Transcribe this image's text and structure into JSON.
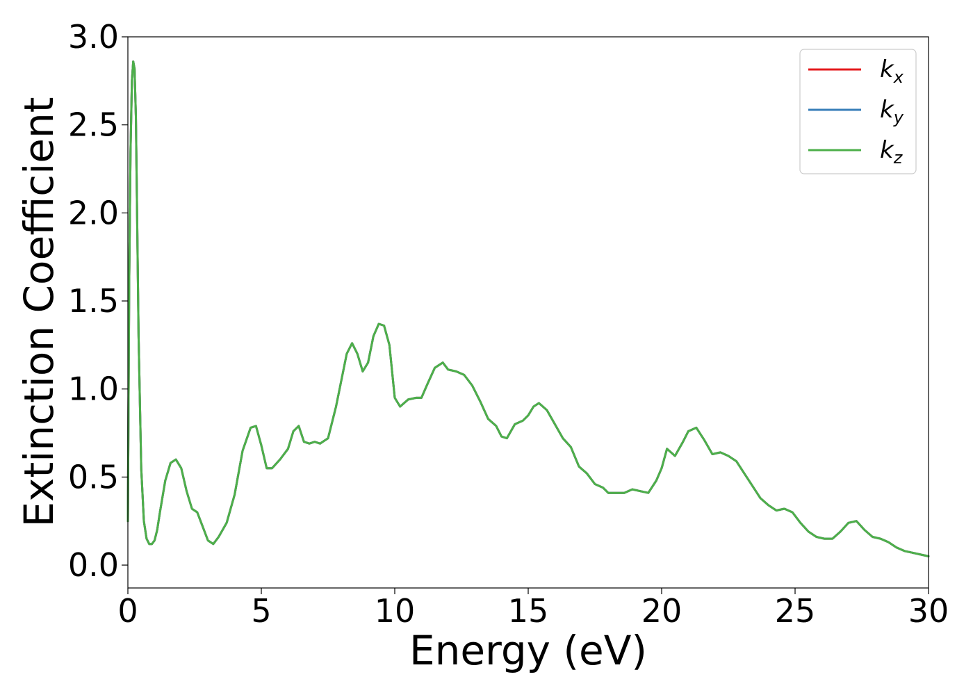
{
  "chart_data": {
    "type": "line",
    "xlabel": "Energy (eV)",
    "ylabel": "Extinction Coefficient",
    "xlim": [
      0,
      30
    ],
    "ylim": [
      -0.13,
      3.0
    ],
    "xticks": [
      0,
      5,
      10,
      15,
      20,
      25,
      30
    ],
    "xtick_labels": [
      "0",
      "5",
      "10",
      "15",
      "20",
      "25",
      "30"
    ],
    "yticks": [
      0.0,
      0.5,
      1.0,
      1.5,
      2.0,
      2.5,
      3.0
    ],
    "ytick_labels": [
      "0.0",
      "0.5",
      "1.0",
      "1.5",
      "2.0",
      "2.5",
      "3.0"
    ],
    "grid": false,
    "legend_position": "top-right",
    "series": [
      {
        "name": "k_x",
        "label_main": "k",
        "label_sub": "x",
        "color": "#e41a1c",
        "x": [
          0.0,
          0.05,
          0.1,
          0.15,
          0.2,
          0.25,
          0.3,
          0.35,
          0.4,
          0.5,
          0.6,
          0.7,
          0.8,
          0.9,
          1.0,
          1.1,
          1.2,
          1.4,
          1.6,
          1.8,
          2.0,
          2.2,
          2.4,
          2.6,
          2.8,
          3.0,
          3.2,
          3.4,
          3.7,
          4.0,
          4.3,
          4.6,
          4.8,
          5.0,
          5.2,
          5.4,
          5.7,
          6.0,
          6.2,
          6.4,
          6.6,
          6.8,
          7.0,
          7.2,
          7.5,
          7.8,
          8.0,
          8.2,
          8.4,
          8.6,
          8.8,
          9.0,
          9.2,
          9.4,
          9.6,
          9.8,
          10.0,
          10.2,
          10.5,
          10.8,
          11.0,
          11.2,
          11.5,
          11.8,
          12.0,
          12.3,
          12.6,
          12.9,
          13.2,
          13.5,
          13.8,
          14.0,
          14.2,
          14.5,
          14.8,
          15.0,
          15.2,
          15.4,
          15.7,
          16.0,
          16.3,
          16.6,
          16.9,
          17.2,
          17.5,
          17.8,
          18.0,
          18.3,
          18.6,
          18.9,
          19.2,
          19.5,
          19.8,
          20.0,
          20.2,
          20.5,
          20.8,
          21.0,
          21.3,
          21.6,
          21.9,
          22.2,
          22.5,
          22.8,
          23.1,
          23.4,
          23.7,
          24.0,
          24.3,
          24.6,
          24.9,
          25.2,
          25.5,
          25.8,
          26.1,
          26.4,
          26.7,
          27.0,
          27.3,
          27.6,
          27.9,
          28.2,
          28.5,
          28.8,
          29.1,
          29.4,
          29.7,
          30.0
        ],
        "y": [
          0.25,
          1.6,
          2.35,
          2.75,
          2.86,
          2.82,
          2.55,
          1.95,
          1.3,
          0.55,
          0.25,
          0.15,
          0.12,
          0.12,
          0.14,
          0.2,
          0.3,
          0.48,
          0.58,
          0.6,
          0.55,
          0.42,
          0.32,
          0.3,
          0.22,
          0.14,
          0.12,
          0.16,
          0.24,
          0.4,
          0.65,
          0.78,
          0.79,
          0.68,
          0.55,
          0.55,
          0.6,
          0.66,
          0.76,
          0.79,
          0.7,
          0.69,
          0.7,
          0.69,
          0.72,
          0.9,
          1.05,
          1.2,
          1.26,
          1.2,
          1.1,
          1.15,
          1.3,
          1.37,
          1.36,
          1.25,
          0.95,
          0.9,
          0.94,
          0.95,
          0.95,
          1.02,
          1.12,
          1.15,
          1.11,
          1.1,
          1.08,
          1.02,
          0.93,
          0.83,
          0.79,
          0.73,
          0.72,
          0.8,
          0.82,
          0.85,
          0.9,
          0.92,
          0.88,
          0.8,
          0.72,
          0.67,
          0.56,
          0.52,
          0.46,
          0.44,
          0.41,
          0.41,
          0.41,
          0.43,
          0.42,
          0.41,
          0.48,
          0.55,
          0.66,
          0.62,
          0.7,
          0.76,
          0.78,
          0.71,
          0.63,
          0.64,
          0.62,
          0.59,
          0.52,
          0.45,
          0.38,
          0.34,
          0.31,
          0.32,
          0.3,
          0.24,
          0.19,
          0.16,
          0.15,
          0.15,
          0.19,
          0.24,
          0.25,
          0.2,
          0.16,
          0.15,
          0.13,
          0.1,
          0.08,
          0.07,
          0.06,
          0.05
        ]
      },
      {
        "name": "k_y",
        "label_main": "k",
        "label_sub": "y",
        "color": "#377eb8",
        "x": [
          0.0,
          0.05,
          0.1,
          0.15,
          0.2,
          0.25,
          0.3,
          0.35,
          0.4,
          0.5,
          0.6,
          0.7,
          0.8,
          0.9,
          1.0,
          1.1,
          1.2,
          1.4,
          1.6,
          1.8,
          2.0,
          2.2,
          2.4,
          2.6,
          2.8,
          3.0,
          3.2,
          3.4,
          3.7,
          4.0,
          4.3,
          4.6,
          4.8,
          5.0,
          5.2,
          5.4,
          5.7,
          6.0,
          6.2,
          6.4,
          6.6,
          6.8,
          7.0,
          7.2,
          7.5,
          7.8,
          8.0,
          8.2,
          8.4,
          8.6,
          8.8,
          9.0,
          9.2,
          9.4,
          9.6,
          9.8,
          10.0,
          10.2,
          10.5,
          10.8,
          11.0,
          11.2,
          11.5,
          11.8,
          12.0,
          12.3,
          12.6,
          12.9,
          13.2,
          13.5,
          13.8,
          14.0,
          14.2,
          14.5,
          14.8,
          15.0,
          15.2,
          15.4,
          15.7,
          16.0,
          16.3,
          16.6,
          16.9,
          17.2,
          17.5,
          17.8,
          18.0,
          18.3,
          18.6,
          18.9,
          19.2,
          19.5,
          19.8,
          20.0,
          20.2,
          20.5,
          20.8,
          21.0,
          21.3,
          21.6,
          21.9,
          22.2,
          22.5,
          22.8,
          23.1,
          23.4,
          23.7,
          24.0,
          24.3,
          24.6,
          24.9,
          25.2,
          25.5,
          25.8,
          26.1,
          26.4,
          26.7,
          27.0,
          27.3,
          27.6,
          27.9,
          28.2,
          28.5,
          28.8,
          29.1,
          29.4,
          29.7,
          30.0
        ],
        "y": [
          0.25,
          1.6,
          2.35,
          2.75,
          2.86,
          2.82,
          2.55,
          1.95,
          1.3,
          0.55,
          0.25,
          0.15,
          0.12,
          0.12,
          0.14,
          0.2,
          0.3,
          0.48,
          0.58,
          0.6,
          0.55,
          0.42,
          0.32,
          0.3,
          0.22,
          0.14,
          0.12,
          0.16,
          0.24,
          0.4,
          0.65,
          0.78,
          0.79,
          0.68,
          0.55,
          0.55,
          0.6,
          0.66,
          0.76,
          0.79,
          0.7,
          0.69,
          0.7,
          0.69,
          0.72,
          0.9,
          1.05,
          1.2,
          1.26,
          1.2,
          1.1,
          1.15,
          1.3,
          1.37,
          1.36,
          1.25,
          0.95,
          0.9,
          0.94,
          0.95,
          0.95,
          1.02,
          1.12,
          1.15,
          1.11,
          1.1,
          1.08,
          1.02,
          0.93,
          0.83,
          0.79,
          0.73,
          0.72,
          0.8,
          0.82,
          0.85,
          0.9,
          0.92,
          0.88,
          0.8,
          0.72,
          0.67,
          0.56,
          0.52,
          0.46,
          0.44,
          0.41,
          0.41,
          0.41,
          0.43,
          0.42,
          0.41,
          0.48,
          0.55,
          0.66,
          0.62,
          0.7,
          0.76,
          0.78,
          0.71,
          0.63,
          0.64,
          0.62,
          0.59,
          0.52,
          0.45,
          0.38,
          0.34,
          0.31,
          0.32,
          0.3,
          0.24,
          0.19,
          0.16,
          0.15,
          0.15,
          0.19,
          0.24,
          0.25,
          0.2,
          0.16,
          0.15,
          0.13,
          0.1,
          0.08,
          0.07,
          0.06,
          0.05
        ]
      },
      {
        "name": "k_z",
        "label_main": "k",
        "label_sub": "z",
        "color": "#4daf4a",
        "x": [
          0.0,
          0.05,
          0.1,
          0.15,
          0.2,
          0.25,
          0.3,
          0.35,
          0.4,
          0.5,
          0.6,
          0.7,
          0.8,
          0.9,
          1.0,
          1.1,
          1.2,
          1.4,
          1.6,
          1.8,
          2.0,
          2.2,
          2.4,
          2.6,
          2.8,
          3.0,
          3.2,
          3.4,
          3.7,
          4.0,
          4.3,
          4.6,
          4.8,
          5.0,
          5.2,
          5.4,
          5.7,
          6.0,
          6.2,
          6.4,
          6.6,
          6.8,
          7.0,
          7.2,
          7.5,
          7.8,
          8.0,
          8.2,
          8.4,
          8.6,
          8.8,
          9.0,
          9.2,
          9.4,
          9.6,
          9.8,
          10.0,
          10.2,
          10.5,
          10.8,
          11.0,
          11.2,
          11.5,
          11.8,
          12.0,
          12.3,
          12.6,
          12.9,
          13.2,
          13.5,
          13.8,
          14.0,
          14.2,
          14.5,
          14.8,
          15.0,
          15.2,
          15.4,
          15.7,
          16.0,
          16.3,
          16.6,
          16.9,
          17.2,
          17.5,
          17.8,
          18.0,
          18.3,
          18.6,
          18.9,
          19.2,
          19.5,
          19.8,
          20.0,
          20.2,
          20.5,
          20.8,
          21.0,
          21.3,
          21.6,
          21.9,
          22.2,
          22.5,
          22.8,
          23.1,
          23.4,
          23.7,
          24.0,
          24.3,
          24.6,
          24.9,
          25.2,
          25.5,
          25.8,
          26.1,
          26.4,
          26.7,
          27.0,
          27.3,
          27.6,
          27.9,
          28.2,
          28.5,
          28.8,
          29.1,
          29.4,
          29.7,
          30.0
        ],
        "y": [
          0.25,
          1.6,
          2.35,
          2.75,
          2.86,
          2.82,
          2.55,
          1.95,
          1.3,
          0.55,
          0.25,
          0.15,
          0.12,
          0.12,
          0.14,
          0.2,
          0.3,
          0.48,
          0.58,
          0.6,
          0.55,
          0.42,
          0.32,
          0.3,
          0.22,
          0.14,
          0.12,
          0.16,
          0.24,
          0.4,
          0.65,
          0.78,
          0.79,
          0.68,
          0.55,
          0.55,
          0.6,
          0.66,
          0.76,
          0.79,
          0.7,
          0.69,
          0.7,
          0.69,
          0.72,
          0.9,
          1.05,
          1.2,
          1.26,
          1.2,
          1.1,
          1.15,
          1.3,
          1.37,
          1.36,
          1.25,
          0.95,
          0.9,
          0.94,
          0.95,
          0.95,
          1.02,
          1.12,
          1.15,
          1.11,
          1.1,
          1.08,
          1.02,
          0.93,
          0.83,
          0.79,
          0.73,
          0.72,
          0.8,
          0.82,
          0.85,
          0.9,
          0.92,
          0.88,
          0.8,
          0.72,
          0.67,
          0.56,
          0.52,
          0.46,
          0.44,
          0.41,
          0.41,
          0.41,
          0.43,
          0.42,
          0.41,
          0.48,
          0.55,
          0.66,
          0.62,
          0.7,
          0.76,
          0.78,
          0.71,
          0.63,
          0.64,
          0.62,
          0.59,
          0.52,
          0.45,
          0.38,
          0.34,
          0.31,
          0.32,
          0.3,
          0.24,
          0.19,
          0.16,
          0.15,
          0.15,
          0.19,
          0.24,
          0.25,
          0.2,
          0.16,
          0.15,
          0.13,
          0.1,
          0.08,
          0.07,
          0.06,
          0.05
        ]
      }
    ]
  }
}
